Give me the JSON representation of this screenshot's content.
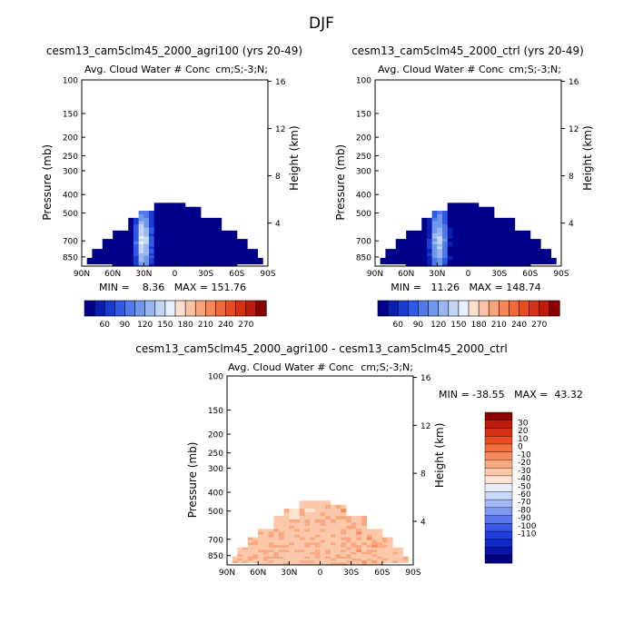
{
  "figure_title": "DJF",
  "colors": {
    "blue_scale": [
      "#00008b",
      "#0a1fb0",
      "#1a3cd2",
      "#3059e6",
      "#4f7ae8",
      "#7098ea",
      "#9ab6ef",
      "#c3d6f4",
      "#e8f0fb"
    ],
    "red_scale": [
      "#fde0cf",
      "#fbc3a5",
      "#f9a37b",
      "#f78557",
      "#f36838",
      "#ea4a1f",
      "#d63115",
      "#bd1c0e",
      "#8b0000"
    ],
    "diff_scale": [
      "#000080",
      "#0a14a8",
      "#0f28c8",
      "#1e3ce0",
      "#3a58e8",
      "#5a78ec",
      "#7e98f0",
      "#a4b8f4",
      "#cad8f8",
      "#e8eefb",
      "#fde4d3",
      "#fbc8aa",
      "#f9a982",
      "#f68a5c",
      "#f26c3c",
      "#e84c20",
      "#d63012",
      "#bb1a0a",
      "#8b0000"
    ]
  },
  "chart_data": [
    {
      "type": "heatmap",
      "id": "agri100",
      "title": "cesm13_cam5clm45_2000_agri100 (yrs 20-49)",
      "subtitle": "Avg. Cloud Water # Conc",
      "units": "cm;S;-3;N;",
      "ylabel": "Pressure (mb)",
      "ylabel_right": "Height (km)",
      "x_ticks": [
        "90N",
        "60N",
        "30N",
        "0",
        "30S",
        "60S",
        "90S"
      ],
      "x_range": [
        90,
        -90
      ],
      "y_ticks": [
        100,
        150,
        200,
        250,
        300,
        400,
        500,
        700,
        850
      ],
      "y_range": [
        100,
        950
      ],
      "height_ticks": [
        16,
        12,
        8,
        4
      ],
      "min_max": "MIN =    8.36   MAX = 151.76",
      "min": 8.36,
      "max": 151.76,
      "colorbar_labels": [
        "60",
        "90",
        "120",
        "150",
        "180",
        "210",
        "240",
        "270"
      ],
      "peak_lat": 30,
      "peak_strength": 1.0
    },
    {
      "type": "heatmap",
      "id": "ctrl",
      "title": "cesm13_cam5clm45_2000_ctrl (yrs 20-49)",
      "subtitle": "Avg. Cloud Water # Conc",
      "units": "cm;S;-3;N;",
      "ylabel": "Pressure (mb)",
      "ylabel_right": "Height (km)",
      "x_ticks": [
        "90N",
        "60N",
        "30N",
        "0",
        "30S",
        "60S",
        "90S"
      ],
      "x_range": [
        90,
        -90
      ],
      "y_ticks": [
        100,
        150,
        200,
        250,
        300,
        400,
        500,
        700,
        850
      ],
      "y_range": [
        100,
        950
      ],
      "height_ticks": [
        16,
        12,
        8,
        4
      ],
      "min_max": "MIN =   11.26   MAX = 148.74",
      "min": 11.26,
      "max": 148.74,
      "colorbar_labels": [
        "60",
        "90",
        "120",
        "150",
        "180",
        "210",
        "240",
        "270"
      ],
      "peak_lat": 28,
      "peak_strength": 0.95
    },
    {
      "type": "heatmap",
      "id": "diff",
      "title": "cesm13_cam5clm45_2000_agri100 - cesm13_cam5clm45_2000_ctrl",
      "subtitle": "Avg. Cloud Water # Conc",
      "units": "cm;S;-3;N;",
      "ylabel": "Pressure (mb)",
      "ylabel_right": "Height (km)",
      "x_ticks": [
        "90N",
        "60N",
        "30N",
        "0",
        "30S",
        "60S",
        "90S"
      ],
      "x_range": [
        90,
        -90
      ],
      "y_ticks": [
        100,
        150,
        200,
        250,
        300,
        400,
        500,
        700,
        850
      ],
      "y_range": [
        100,
        950
      ],
      "height_ticks": [
        16,
        12,
        8,
        4
      ],
      "min_max": "MIN = -38.55   MAX =  43.32",
      "min": -38.55,
      "max": 43.32,
      "colorbar_labels": [
        "30",
        "20",
        "10",
        "0",
        "-10",
        "-20",
        "-30",
        "-40",
        "-50",
        "-60",
        "-70",
        "-80",
        "-90",
        "-100",
        "-110"
      ]
    }
  ]
}
